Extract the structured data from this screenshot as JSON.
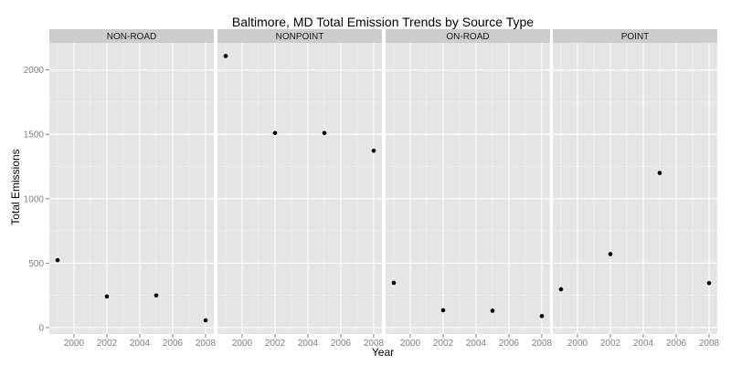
{
  "chart_data": {
    "type": "scatter",
    "title": "Baltimore, MD Total Emission Trends by Source Type",
    "xlabel": "Year",
    "ylabel": "Total Emissions",
    "xlim": [
      1998.5,
      2008.5
    ],
    "ylim": [
      -50,
      2210
    ],
    "x_ticks": [
      2000,
      2002,
      2004,
      2006,
      2008
    ],
    "y_ticks": [
      0,
      500,
      1000,
      1500,
      2000
    ],
    "grid": true,
    "facets": [
      {
        "name": "NON-ROAD",
        "x": [
          1999,
          2002,
          2005,
          2008
        ],
        "y": [
          523,
          241,
          249,
          56
        ]
      },
      {
        "name": "NONPOINT",
        "x": [
          1999,
          2002,
          2005,
          2008
        ],
        "y": [
          2108,
          1510,
          1510,
          1373
        ]
      },
      {
        "name": "ON-ROAD",
        "x": [
          1999,
          2002,
          2005,
          2008
        ],
        "y": [
          347,
          134,
          131,
          89
        ]
      },
      {
        "name": "POINT",
        "x": [
          1999,
          2002,
          2005,
          2008
        ],
        "y": [
          297,
          570,
          1200,
          345
        ]
      }
    ]
  }
}
